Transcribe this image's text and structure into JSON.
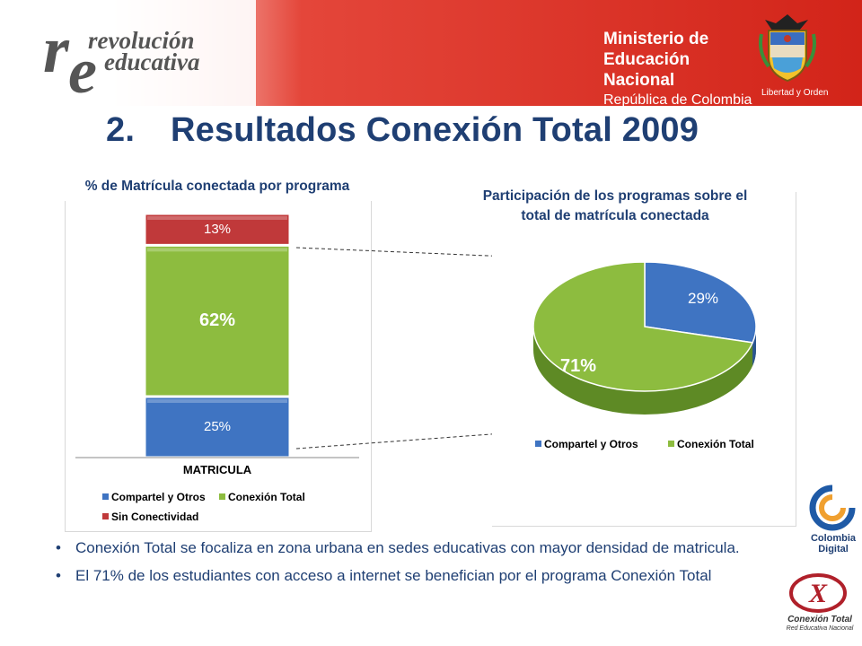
{
  "header": {
    "logo_left_line1": "revolución",
    "logo_left_line2": "educativa",
    "ministry_line1": "Ministerio de",
    "ministry_line2": "Educación Nacional",
    "ministry_line3": "República de Colombia",
    "motto": "Libertad y Orden",
    "colors": {
      "red": "#d62a1e",
      "navy": "#1f3f73"
    }
  },
  "title": {
    "number": "2.",
    "text": "Resultados Conexión Total 2009"
  },
  "bar_chart_title": "% de Matrícula conectada por programa",
  "pie_chart_title_line1": "Participación de los programas sobre el",
  "pie_chart_title_line2": "total de matrícula conectada",
  "bar_x_label": "MATRICULA",
  "bar_segment_labels": {
    "bottom": "25%",
    "middle": "62%",
    "top": "13%"
  },
  "pie_labels": {
    "blue": "29%",
    "green": "71%"
  },
  "bar_legend": [
    "Compartel y Otros",
    "Conexión Total",
    "Sin Conectividad"
  ],
  "pie_legend": [
    "Compartel y Otros",
    "Conexión Total"
  ],
  "chart_data": [
    {
      "type": "bar",
      "title": "% de Matrícula conectada por programa",
      "categories": [
        "MATRICULA"
      ],
      "stacked": true,
      "series": [
        {
          "name": "Compartel y Otros",
          "values": [
            25
          ],
          "color": "#3f74c2"
        },
        {
          "name": "Conexión Total",
          "values": [
            62
          ],
          "color": "#8dbc3f"
        },
        {
          "name": "Sin Conectividad",
          "values": [
            13
          ],
          "color": "#c0393a"
        }
      ],
      "legend": "bottom"
    },
    {
      "type": "pie",
      "title": "Participación de los programas sobre el total de matrícula conectada",
      "labels": [
        "Compartel y Otros",
        "Conexión Total"
      ],
      "values": [
        29,
        71
      ],
      "colors": [
        "#3f74c2",
        "#8dbc3f"
      ],
      "legend": "bottom"
    }
  ],
  "bullets": [
    "Conexión Total se focaliza en zona urbana en sedes educativas con mayor densidad de matricula.",
    "El 71% de los estudiantes con acceso a internet se benefician por el programa Conexión Total"
  ],
  "side_logos": {
    "colombia_line1": "Colombia",
    "colombia_line2": "Digital",
    "conexion_line1": "Conexión Total",
    "conexion_line2": "Red Educativa Nacional"
  }
}
